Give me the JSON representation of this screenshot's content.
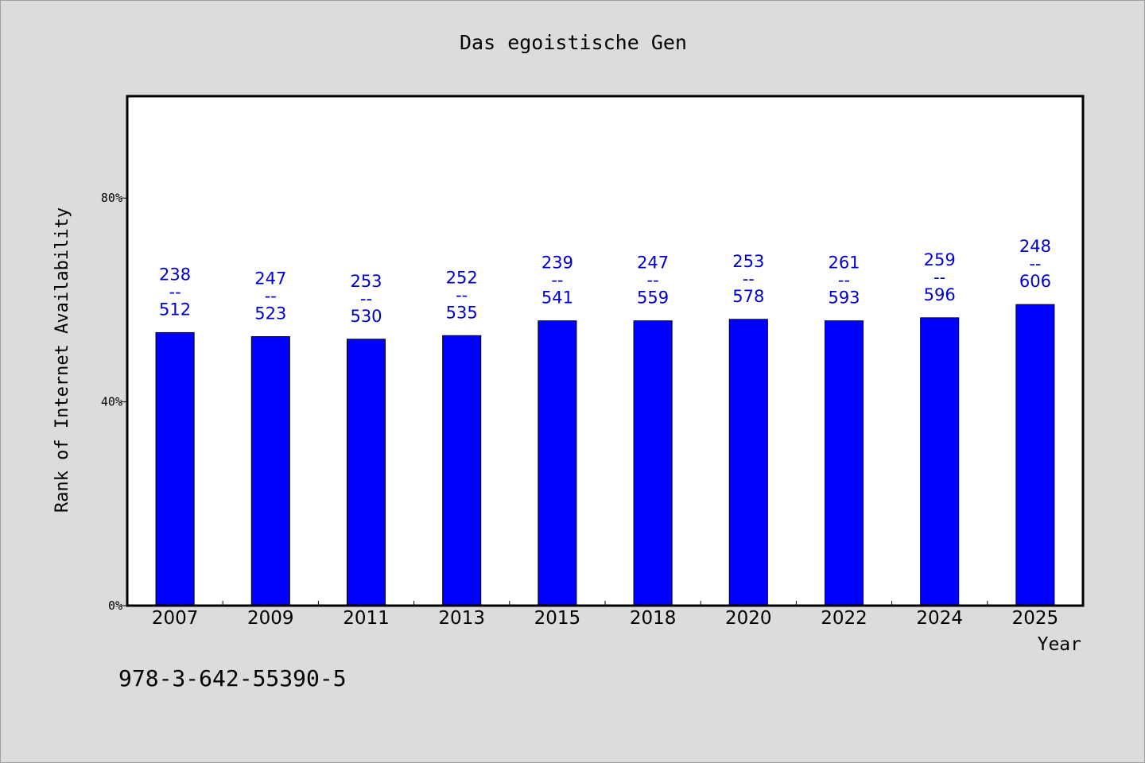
{
  "chart_data": {
    "type": "bar",
    "title": "Das egoistische Gen",
    "xlabel": "Year",
    "ylabel": "Rank of Internet Availability",
    "categories": [
      "2007",
      "2009",
      "2011",
      "2013",
      "2015",
      "2018",
      "2020",
      "2022",
      "2024",
      "2025"
    ],
    "values": [
      53.6,
      52.8,
      52.3,
      53.0,
      55.9,
      55.9,
      56.2,
      55.9,
      56.5,
      59.1
    ],
    "data_labels": [
      {
        "top": "238",
        "sep": "--",
        "bottom": "512"
      },
      {
        "top": "247",
        "sep": "--",
        "bottom": "523"
      },
      {
        "top": "253",
        "sep": "--",
        "bottom": "530"
      },
      {
        "top": "252",
        "sep": "--",
        "bottom": "535"
      },
      {
        "top": "239",
        "sep": "--",
        "bottom": "541"
      },
      {
        "top": "247",
        "sep": "--",
        "bottom": "559"
      },
      {
        "top": "253",
        "sep": "--",
        "bottom": "578"
      },
      {
        "top": "261",
        "sep": "--",
        "bottom": "593"
      },
      {
        "top": "259",
        "sep": "--",
        "bottom": "596"
      },
      {
        "top": "248",
        "sep": "--",
        "bottom": "606"
      }
    ],
    "ylim": [
      0,
      100
    ],
    "yticks": [
      {
        "value": 0,
        "label": "0%"
      },
      {
        "value": 40,
        "label": "40%"
      },
      {
        "value": 80,
        "label": "80%"
      }
    ],
    "grid": false,
    "bar_color": "#0000ff",
    "label_color": "#0000cc",
    "background_color": "#dcdcdc",
    "plot_background_color": "#ffffff"
  },
  "footer": {
    "isbn": "978-3-642-55390-5"
  }
}
